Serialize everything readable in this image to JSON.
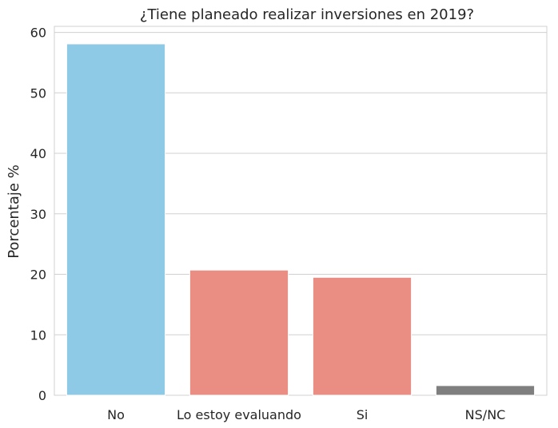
{
  "chart_data": {
    "type": "bar",
    "title": "¿Tiene planeado realizar inversiones en 2019?",
    "xlabel": "",
    "ylabel": "Porcentaje %",
    "categories": [
      "No",
      "Lo estoy evaluando",
      "Si",
      "NS/NC"
    ],
    "values": [
      58.1,
      20.7,
      19.5,
      1.6
    ],
    "colors": [
      "#8ecae6",
      "#ea8d83",
      "#ea8d83",
      "#7f7f7f"
    ],
    "ylim": [
      0,
      61
    ],
    "yticks": [
      "0",
      "10",
      "20",
      "30",
      "40",
      "50",
      "60"
    ],
    "grid": true,
    "legend": "none"
  }
}
